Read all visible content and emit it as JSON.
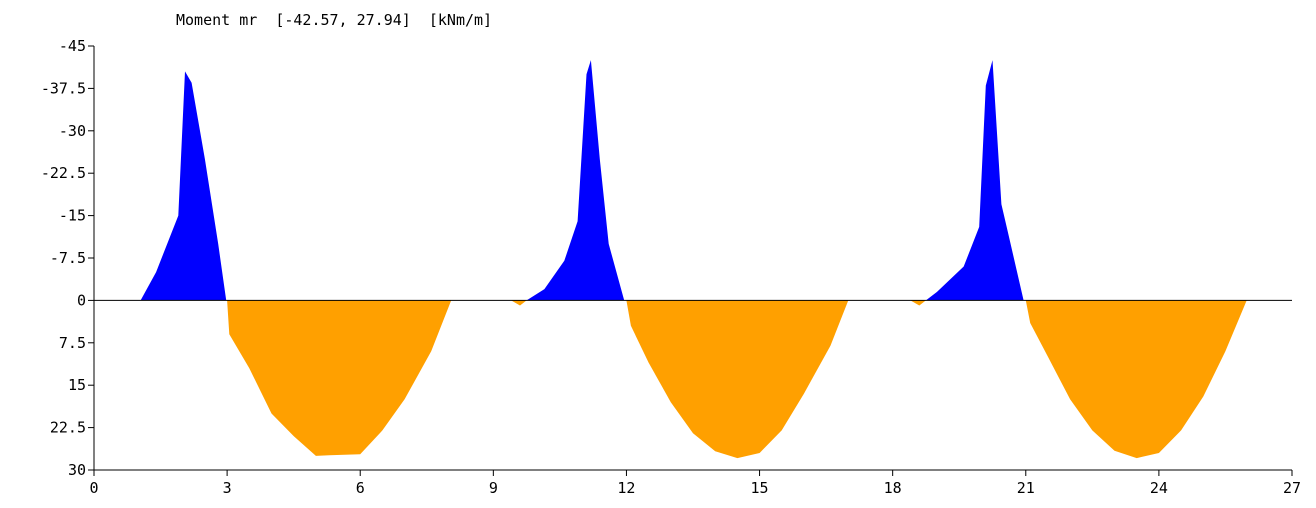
{
  "chart_data": {
    "type": "area",
    "title": "Moment mr  [-42.57, 27.94]  [kNm/m]",
    "xlabel": "",
    "ylabel": "",
    "xlim": [
      0,
      27
    ],
    "ylim": [
      -45,
      30
    ],
    "y_axis_inverted": true,
    "x_ticks": [
      0,
      3,
      6,
      9,
      12,
      15,
      18,
      21,
      24,
      27
    ],
    "x_tick_labels": [
      "0",
      "3",
      "6",
      "9",
      "12",
      "15",
      "18",
      "21",
      "24",
      "27"
    ],
    "y_ticks": [
      -45,
      -37.5,
      -30,
      -22.5,
      -15,
      -7.5,
      0,
      7.5,
      15,
      22.5,
      30
    ],
    "y_tick_labels": [
      "-45",
      "-37.5",
      "-30",
      "-22.5",
      "-15",
      "-7.5",
      "0",
      "7.5",
      "15",
      "22.5",
      "30"
    ],
    "colors": {
      "negative": "#0000ff",
      "positive": "#ffa000",
      "axis": "#000000"
    },
    "series": [
      {
        "sign": "negative",
        "color": "#0000ff",
        "regions": [
          [
            [
              1.05,
              0
            ],
            [
              1.4,
              -5
            ],
            [
              1.9,
              -15
            ],
            [
              2.05,
              -40.5
            ],
            [
              2.2,
              -38.5
            ],
            [
              2.5,
              -25
            ],
            [
              2.8,
              -10
            ],
            [
              2.98,
              0
            ]
          ],
          [
            [
              9.75,
              0
            ],
            [
              10.15,
              -2
            ],
            [
              10.6,
              -7
            ],
            [
              10.9,
              -14
            ],
            [
              11.1,
              -40
            ],
            [
              11.2,
              -42.5
            ],
            [
              11.4,
              -25
            ],
            [
              11.6,
              -10
            ],
            [
              11.95,
              0
            ]
          ],
          [
            [
              18.75,
              0
            ],
            [
              19.0,
              -1.5
            ],
            [
              19.6,
              -6
            ],
            [
              19.95,
              -13
            ],
            [
              20.1,
              -38
            ],
            [
              20.25,
              -42.5
            ],
            [
              20.45,
              -17
            ],
            [
              20.6,
              -12
            ],
            [
              20.95,
              0
            ]
          ]
        ]
      },
      {
        "sign": "positive",
        "color": "#ffa000",
        "regions": [
          [
            [
              3.0,
              0
            ],
            [
              3.05,
              6
            ],
            [
              3.5,
              12
            ],
            [
              4.0,
              20
            ],
            [
              4.5,
              24
            ],
            [
              5.0,
              27.5
            ],
            [
              5.3,
              27.4
            ],
            [
              6.0,
              27.2
            ],
            [
              6.5,
              23
            ],
            [
              7.0,
              17.5
            ],
            [
              7.6,
              9
            ],
            [
              8.05,
              0
            ]
          ],
          [
            [
              9.4,
              0
            ],
            [
              9.6,
              0.9
            ],
            [
              9.75,
              0
            ]
          ],
          [
            [
              12.0,
              0
            ],
            [
              12.1,
              4.5
            ],
            [
              12.5,
              11
            ],
            [
              13.0,
              18
            ],
            [
              13.5,
              23.5
            ],
            [
              14.0,
              26.7
            ],
            [
              14.5,
              27.9
            ],
            [
              15.0,
              27
            ],
            [
              15.5,
              23
            ],
            [
              16.0,
              16.5
            ],
            [
              16.6,
              8
            ],
            [
              17.0,
              0
            ]
          ],
          [
            [
              18.4,
              0
            ],
            [
              18.6,
              0.9
            ],
            [
              18.75,
              0
            ]
          ],
          [
            [
              21.0,
              0
            ],
            [
              21.1,
              4
            ],
            [
              21.5,
              10
            ],
            [
              22.0,
              17.5
            ],
            [
              22.5,
              23
            ],
            [
              23.0,
              26.6
            ],
            [
              23.5,
              27.9
            ],
            [
              24.0,
              27
            ],
            [
              24.5,
              23
            ],
            [
              25.0,
              17
            ],
            [
              25.5,
              9
            ],
            [
              25.98,
              0
            ]
          ]
        ]
      }
    ]
  }
}
